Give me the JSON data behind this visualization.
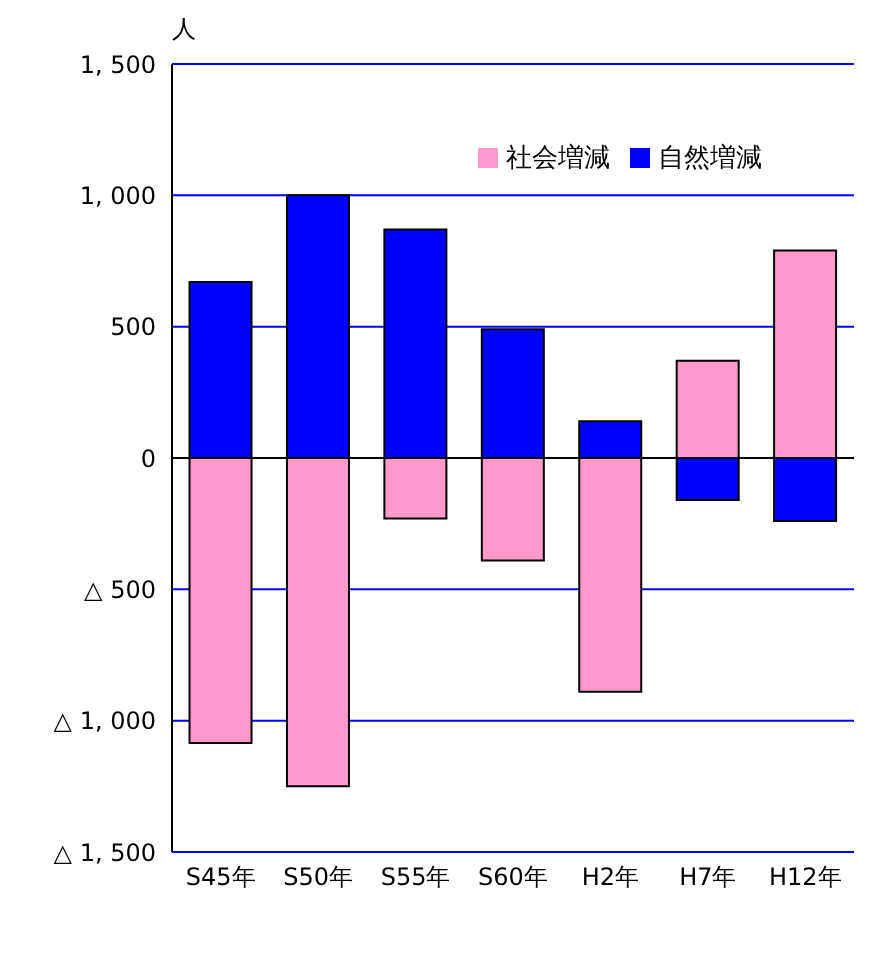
{
  "chart_data": {
    "type": "bar",
    "ylabel": "人",
    "categories": [
      "S45年",
      "S50年",
      "S55年",
      "S60年",
      "H2年",
      "H7年",
      "H12年"
    ],
    "series": [
      {
        "name": "自然増減",
        "color": "#0000ff",
        "values": [
          670,
          1000,
          870,
          490,
          140,
          -160,
          -240
        ]
      },
      {
        "name": "社会増減",
        "color": "#ff99cc",
        "values": [
          -1085,
          -1250,
          -230,
          -390,
          -890,
          370,
          790
        ]
      }
    ],
    "stacked": true,
    "ylim": [
      -1500,
      1500
    ],
    "yticks": [
      {
        "value": -1500,
        "label": "△ 1, 500"
      },
      {
        "value": -1000,
        "label": "△ 1, 000"
      },
      {
        "value": -500,
        "label": "△ 500"
      },
      0,
      500,
      {
        "value": 1000,
        "label": "1, 000"
      },
      {
        "value": 1500,
        "label": "1, 500"
      }
    ],
    "grid": "y",
    "legend": "top right"
  }
}
